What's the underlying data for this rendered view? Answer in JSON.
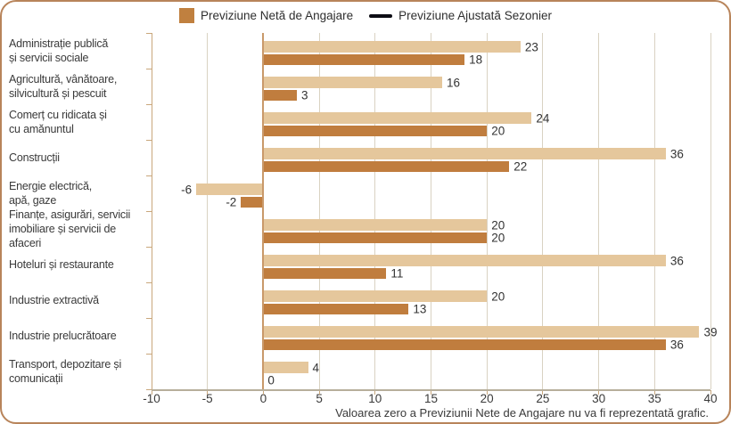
{
  "legend": {
    "net_label": "Previziune Netă de Angajare",
    "adjusted_label": "Previziune Ajustată Sezonier"
  },
  "footer_note": "Valoarea zero a Previziunii Nete de Angajare nu va fi reprezentată grafic.",
  "colors": {
    "net_bar": "#e5c79c",
    "adjusted_bar": "#c07d3e",
    "legend_square": "#c0803f",
    "legend_line": "#0d0d15",
    "border": "#b8845a",
    "gridline": "#d9d2c2",
    "zero_line": "#c9996a",
    "y_axis_line": "#c9a77c",
    "x_axis_line": "#b7ae9b",
    "tick": "#c9a77c",
    "text": "#3a3a3a"
  },
  "chart_data": {
    "type": "bar",
    "orientation": "horizontal",
    "title": "",
    "xlabel": "",
    "ylabel": "",
    "xlim": [
      -10,
      40
    ],
    "xticks": [
      -10,
      -5,
      0,
      5,
      10,
      15,
      20,
      25,
      30,
      35,
      40
    ],
    "grid": true,
    "legend_position": "top",
    "categories": [
      "Administrație publică\nși servicii sociale",
      "Agricultură, vânătoare,\nsilvicultură și pescuit",
      "Comerț cu ridicata și\ncu amănuntul",
      "Construcții",
      "Energie electrică,\napă, gaze",
      "Finanțe, asigurări, servicii\nimobiliare și servicii de afaceri",
      "Hoteluri și restaurante",
      "Industrie extractivă",
      "Industrie prelucrătoare",
      "Transport, depozitare și\ncomunicații"
    ],
    "series": [
      {
        "name": "Previziune Netă de Angajare",
        "values": [
          23,
          16,
          24,
          36,
          -6,
          20,
          36,
          20,
          39,
          4
        ]
      },
      {
        "name": "Previziune Ajustată Sezonier",
        "values": [
          18,
          3,
          20,
          22,
          -2,
          20,
          11,
          13,
          36,
          0
        ]
      }
    ],
    "note": "Valoarea zero a Previziunii Nete de Angajare nu va fi reprezentată grafic."
  }
}
